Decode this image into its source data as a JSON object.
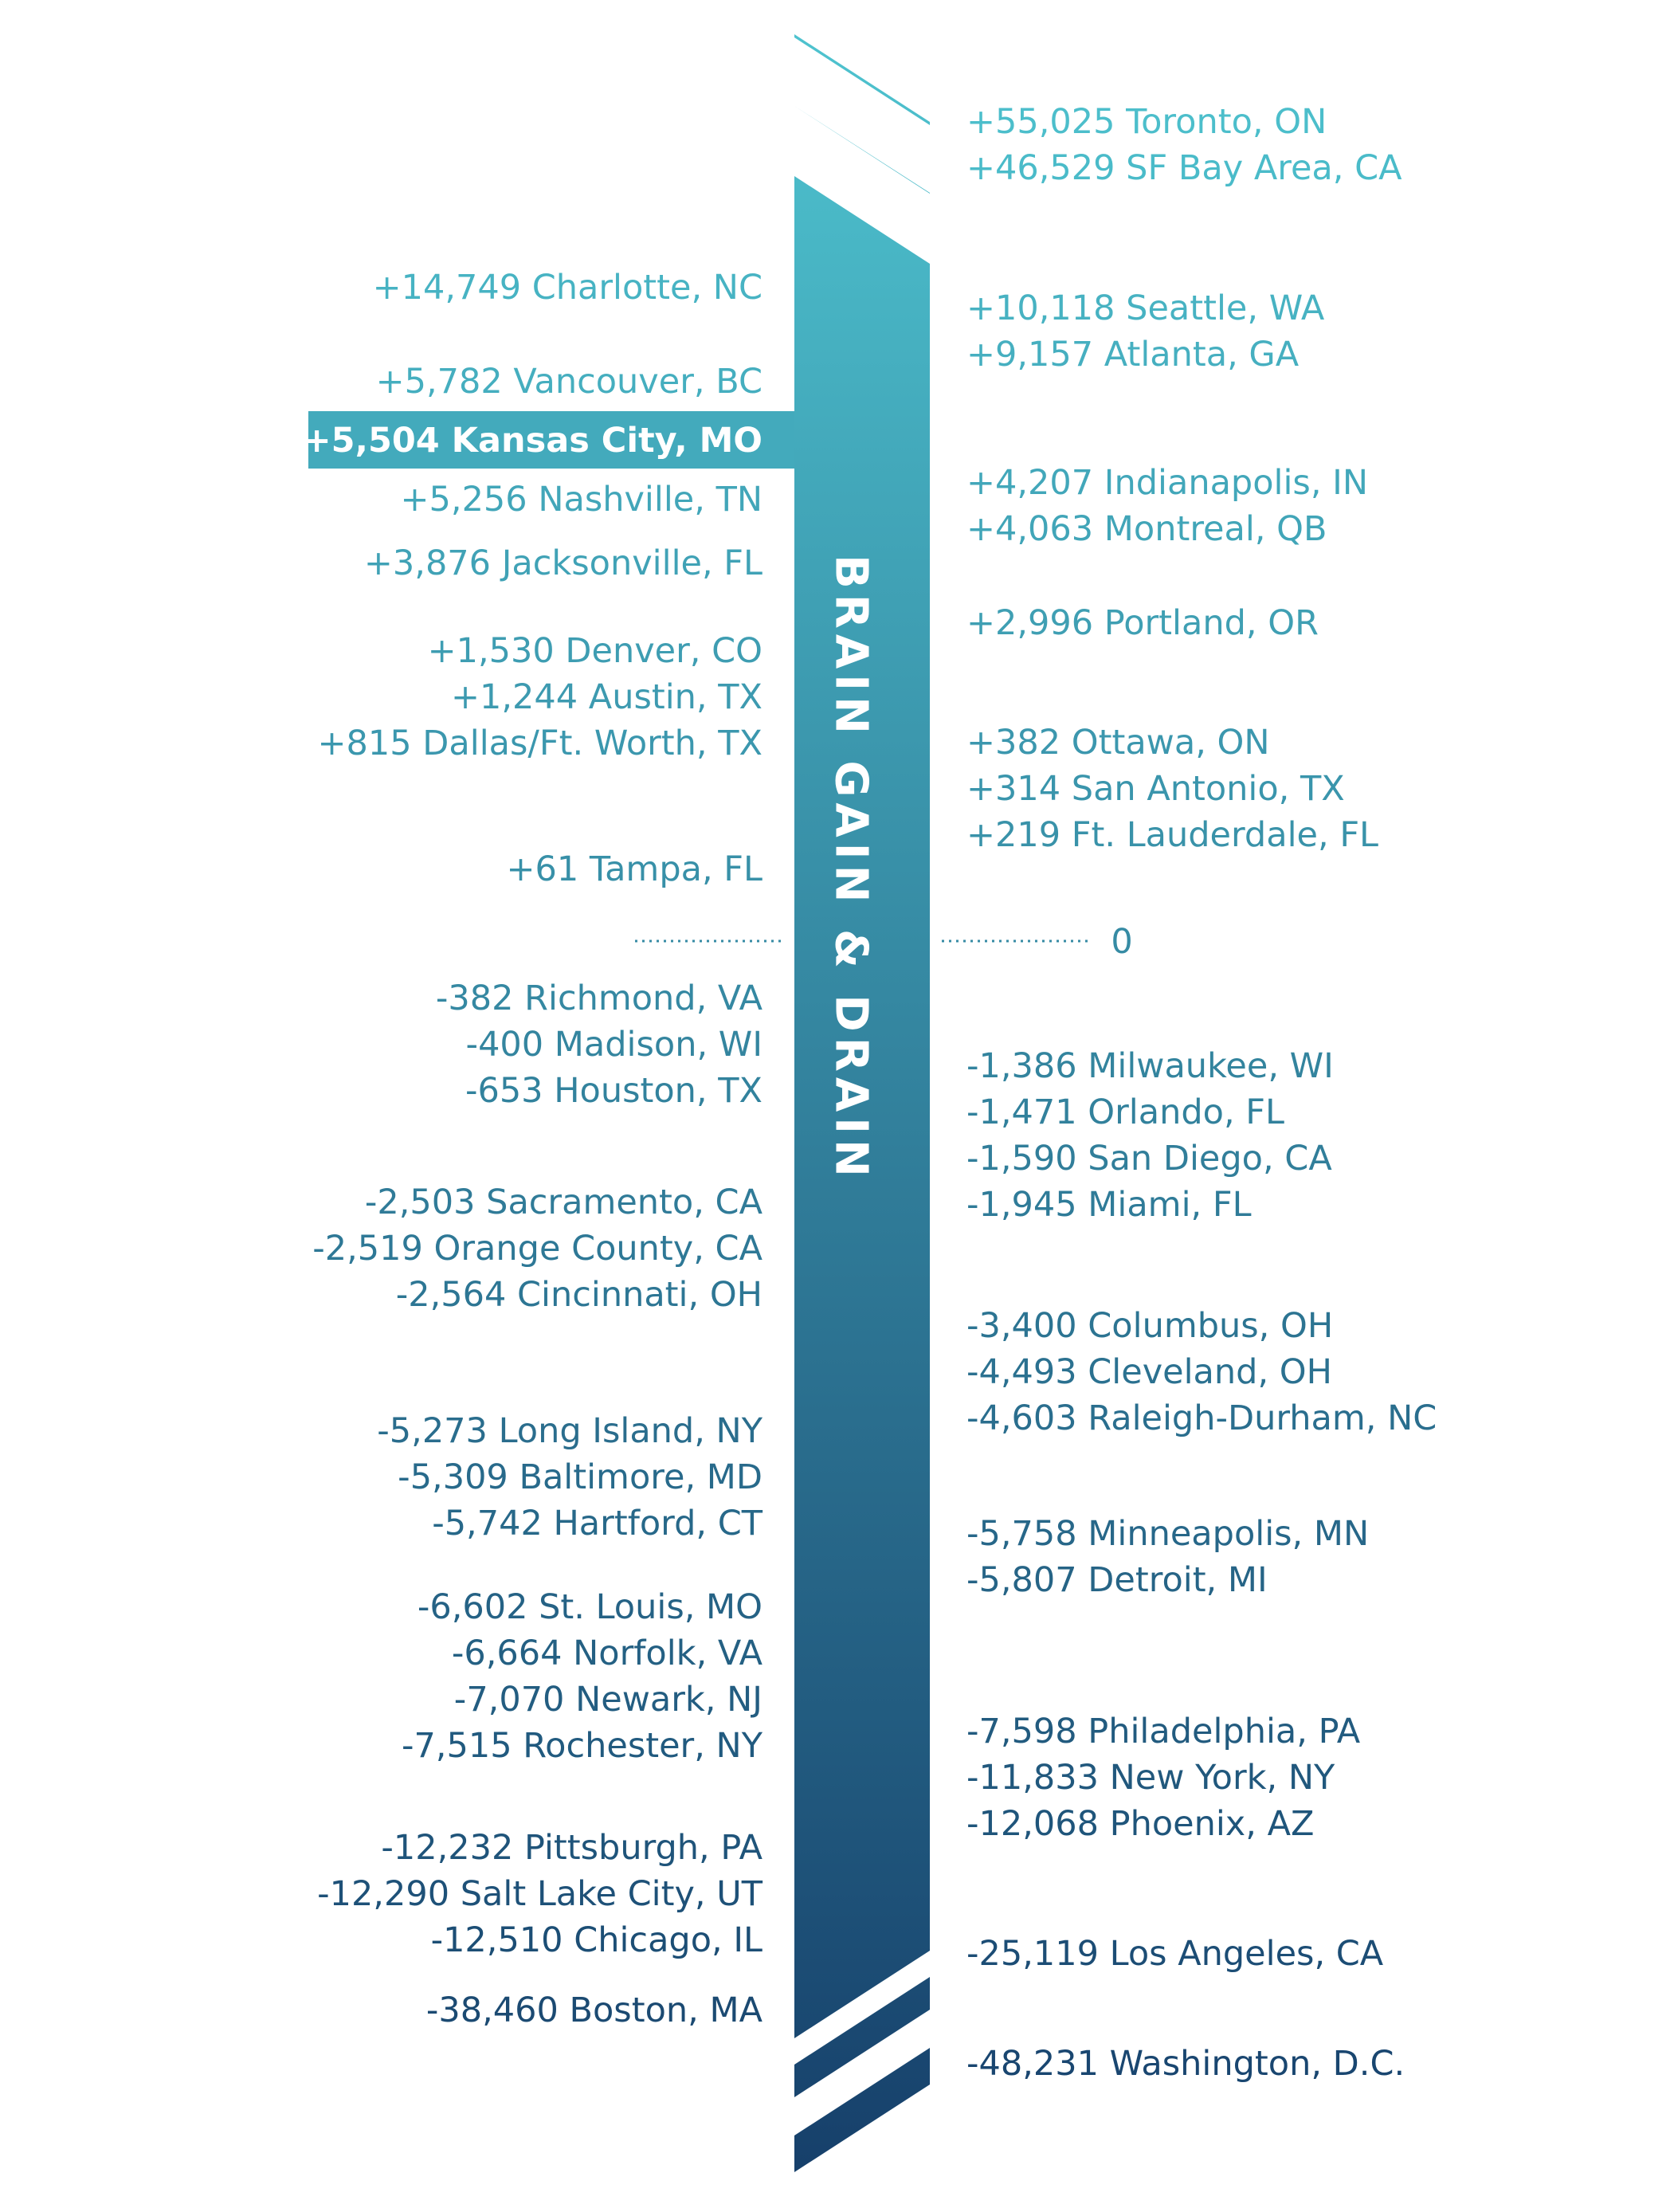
{
  "chart_data": {
    "type": "bar",
    "title": "BRAIN GAIN & DRAIN",
    "zero_label": "0",
    "colors": {
      "top": "#4ec3cf",
      "bottom": "#163f6a",
      "highlight_text": "#ffffff"
    },
    "highlight": "Kansas City, MO",
    "left": [
      {
        "value": 14749,
        "text": "+14,749 Charlotte, NC"
      },
      {
        "value": 5782,
        "text": "+5,782 Vancouver, BC"
      },
      {
        "value": 5504,
        "text": "+5,504 Kansas City, MO",
        "highlight": true
      },
      {
        "value": 5256,
        "text": "+5,256 Nashville, TN"
      },
      {
        "value": 3876,
        "text": "+3,876 Jacksonville, FL"
      },
      {
        "value": 1530,
        "text": "+1,530 Denver, CO"
      },
      {
        "value": 1244,
        "text": "+1,244 Austin, TX"
      },
      {
        "value": 815,
        "text": "+815 Dallas/Ft. Worth, TX"
      },
      {
        "value": 61,
        "text": "+61 Tampa, FL"
      },
      {
        "value": -382,
        "text": "-382 Richmond, VA"
      },
      {
        "value": -400,
        "text": "-400 Madison, WI"
      },
      {
        "value": -653,
        "text": "-653 Houston, TX"
      },
      {
        "value": -2503,
        "text": "-2,503 Sacramento, CA"
      },
      {
        "value": -2519,
        "text": "-2,519 Orange County, CA"
      },
      {
        "value": -2564,
        "text": "-2,564 Cincinnati, OH"
      },
      {
        "value": -5273,
        "text": "-5,273 Long Island, NY"
      },
      {
        "value": -5309,
        "text": "-5,309 Baltimore, MD"
      },
      {
        "value": -5742,
        "text": "-5,742 Hartford, CT"
      },
      {
        "value": -6602,
        "text": "-6,602 St. Louis, MO"
      },
      {
        "value": -6664,
        "text": "-6,664 Norfolk, VA"
      },
      {
        "value": -7070,
        "text": "-7,070 Newark, NJ"
      },
      {
        "value": -7515,
        "text": "-7,515 Rochester, NY"
      },
      {
        "value": -12232,
        "text": "-12,232 Pittsburgh, PA"
      },
      {
        "value": -12290,
        "text": "-12,290 Salt Lake City, UT"
      },
      {
        "value": -12510,
        "text": "-12,510 Chicago, IL"
      },
      {
        "value": -38460,
        "text": "-38,460 Boston, MA"
      }
    ],
    "right": [
      {
        "value": 55025,
        "text": "+55,025 Toronto, ON"
      },
      {
        "value": 46529,
        "text": "+46,529 SF Bay Area, CA"
      },
      {
        "value": 10118,
        "text": "+10,118 Seattle, WA"
      },
      {
        "value": 9157,
        "text": "+9,157 Atlanta, GA"
      },
      {
        "value": 4207,
        "text": "+4,207 Indianapolis, IN"
      },
      {
        "value": 4063,
        "text": "+4,063 Montreal, QB"
      },
      {
        "value": 2996,
        "text": "+2,996 Portland, OR"
      },
      {
        "value": 382,
        "text": "+382 Ottawa, ON"
      },
      {
        "value": 314,
        "text": "+314 San Antonio, TX"
      },
      {
        "value": 219,
        "text": "+219 Ft. Lauderdale, FL"
      },
      {
        "value": -1386,
        "text": "-1,386 Milwaukee, WI"
      },
      {
        "value": -1471,
        "text": "-1,471 Orlando, FL"
      },
      {
        "value": -1590,
        "text": "-1,590 San Diego, CA"
      },
      {
        "value": -1945,
        "text": "-1,945 Miami, FL"
      },
      {
        "value": -3400,
        "text": "-3,400 Columbus, OH"
      },
      {
        "value": -4493,
        "text": "-4,493 Cleveland, OH"
      },
      {
        "value": -4603,
        "text": "-4,603 Raleigh-Durham, NC"
      },
      {
        "value": -5758,
        "text": "-5,758 Minneapolis, MN"
      },
      {
        "value": -5807,
        "text": "-5,807 Detroit, MI"
      },
      {
        "value": -7598,
        "text": "-7,598 Philadelphia, PA"
      },
      {
        "value": -11833,
        "text": "-11,833 New York, NY"
      },
      {
        "value": -12068,
        "text": "-12,068 Phoenix, AZ"
      },
      {
        "value": -25119,
        "text": "-25,119 Los Angeles, CA"
      },
      {
        "value": -48231,
        "text": "-48,231 Washington, D.C."
      }
    ]
  }
}
